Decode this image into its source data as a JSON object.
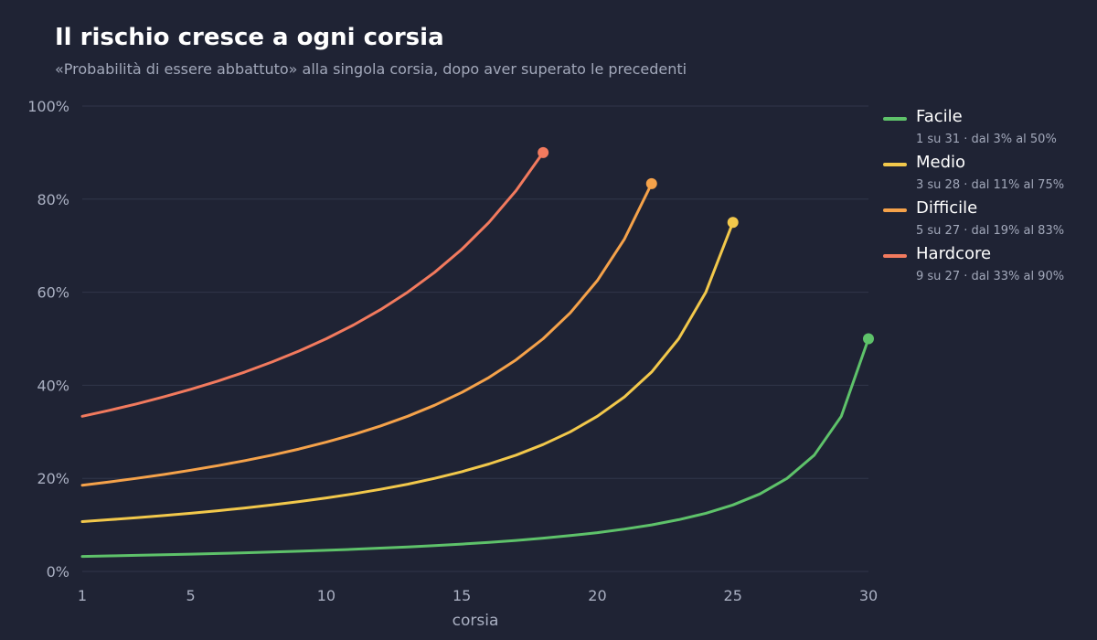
{
  "title": "Il rischio cresce a ogni corsia",
  "subtitle": "«Probabilità di essere abbattuto» alla singola corsia, dopo aver superato le precedenti",
  "chart_data": {
    "type": "line",
    "title": "Il rischio cresce a ogni corsia",
    "subtitle": "«Probabilità di essere abbattuto» alla singola corsia, dopo aver superato le precedenti",
    "xlabel": "corsia",
    "ylabel": "",
    "xlim": [
      1,
      30
    ],
    "ylim": [
      0,
      100
    ],
    "x_ticks": [
      1,
      5,
      10,
      15,
      20,
      25,
      30
    ],
    "y_ticks": [
      0,
      20,
      40,
      60,
      80,
      100
    ],
    "y_tick_labels": [
      "0%",
      "20%",
      "40%",
      "60%",
      "80%",
      "100%"
    ],
    "grid": "horizontal",
    "legend_position": "right",
    "series": [
      {
        "name": "Facile",
        "detail": "1 su 31 · dal 3% al 50%",
        "color": "#5ec26a",
        "mines": 1,
        "total": 31,
        "last_lane": 30
      },
      {
        "name": "Medio",
        "detail": "3 su 28 · dal 11% al 75%",
        "color": "#f2c84b",
        "mines": 3,
        "total": 28,
        "last_lane": 25
      },
      {
        "name": "Difficile",
        "detail": "5 su 27 · dal 19% al 83%",
        "color": "#f5a24a",
        "mines": 5,
        "total": 27,
        "last_lane": 22
      },
      {
        "name": "Hardcore",
        "detail": "9 su 27 · dal 33% al 90%",
        "color": "#f27a5e",
        "mines": 9,
        "total": 27,
        "last_lane": 18
      }
    ]
  }
}
